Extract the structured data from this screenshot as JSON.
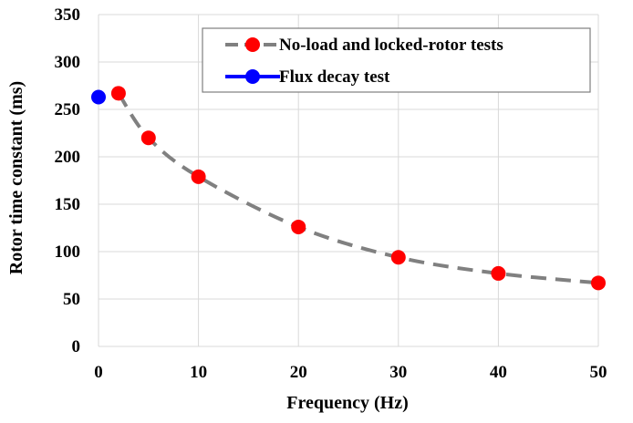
{
  "chart_data": {
    "type": "scatter",
    "xlabel": "Frequency (Hz)",
    "ylabel": "Rotor time constant (ms)",
    "xlim": [
      0,
      50
    ],
    "ylim": [
      0,
      350
    ],
    "xticks": [
      "0",
      "10",
      "20",
      "30",
      "40",
      "50"
    ],
    "yticks": [
      "0",
      "50",
      "100",
      "150",
      "200",
      "250",
      "300",
      "350"
    ],
    "grid": "vertical and horizontal",
    "legend_position": "top-right",
    "series": [
      {
        "name": "No-load and locked-rotor tests",
        "color": "#ff0000",
        "line_color": "#808080",
        "line_style": "dashed",
        "x": [
          2,
          5,
          10,
          20,
          30,
          40,
          50
        ],
        "y": [
          267,
          220,
          179,
          126,
          94,
          77,
          67
        ]
      },
      {
        "name": "Flux decay test",
        "color": "#0000ff",
        "line_color": "#0000ff",
        "line_style": "solid",
        "x": [
          0
        ],
        "y": [
          263
        ]
      }
    ]
  }
}
